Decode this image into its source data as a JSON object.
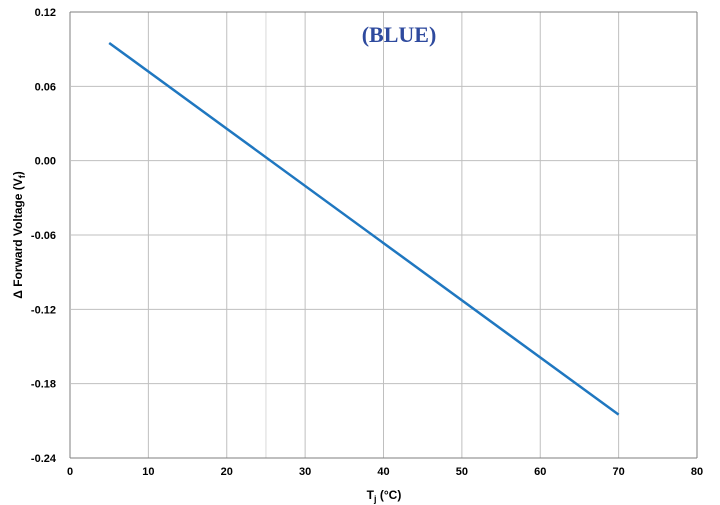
{
  "chart_data": {
    "type": "line",
    "label": "(BLUE)",
    "xlabel_main": "T",
    "xlabel_sub": "j",
    "xlabel_unit": " (°C)",
    "ylabel_main": "Δ Forward Voltage (V",
    "ylabel_sub": "f",
    "ylabel_close": ")",
    "xlim": [
      0,
      80
    ],
    "ylim": [
      -0.24,
      0.12
    ],
    "x_ticks": [
      0,
      10,
      20,
      30,
      40,
      50,
      60,
      70,
      80
    ],
    "y_ticks": [
      0.12,
      0.06,
      0.0,
      -0.06,
      -0.12,
      -0.18,
      -0.24
    ],
    "x_tick_labels": [
      "0",
      "10",
      "20",
      "30",
      "40",
      "50",
      "60",
      "70",
      "80"
    ],
    "y_tick_labels": [
      "0.12",
      "0.06",
      "0.00",
      "-0.06",
      "-0.12",
      "-0.18",
      "-0.24"
    ],
    "extra_x_gridlines": [
      25
    ],
    "grid": true,
    "series": [
      {
        "color": "#1f77c0",
        "x": [
          5,
          70
        ],
        "y": [
          0.095,
          -0.205
        ]
      }
    ]
  },
  "colors": {
    "line": "#1f77c0",
    "label": "#2e4a9e",
    "grid": "#bfbfbf",
    "axis": "#7f7f7f"
  }
}
